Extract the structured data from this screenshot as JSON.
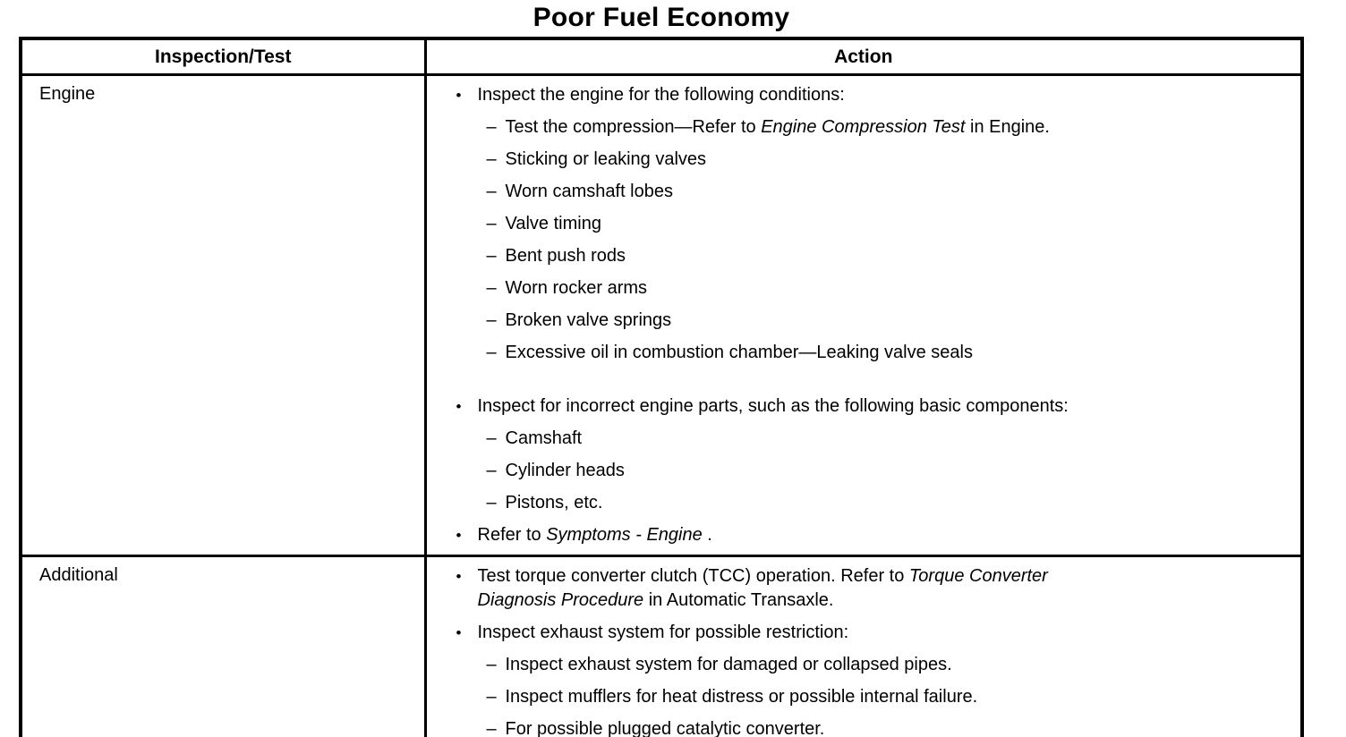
{
  "title": "Poor Fuel Economy",
  "glyphs": {
    "bullet": "•",
    "dash": "–"
  },
  "table": {
    "headers": [
      "Inspection/Test",
      "Action"
    ],
    "rows": [
      {
        "inspection": "Engine",
        "actions": [
          {
            "text": [
              "Inspect the engine for the following conditions:"
            ],
            "subitems": [
              [
                "Test the compression—Refer to ",
                {
                  "i": "Engine Compression Test"
                },
                " in Engine."
              ],
              [
                "Sticking or leaking valves"
              ],
              [
                "Worn camshaft lobes"
              ],
              [
                "Valve timing"
              ],
              [
                "Bent push rods"
              ],
              [
                "Worn rocker arms"
              ],
              [
                "Broken valve springs"
              ],
              [
                "Excessive oil in combustion chamber—Leaking valve seals"
              ]
            ]
          },
          {
            "gap_before": true,
            "text": [
              "Inspect for incorrect engine parts, such as the following basic components:"
            ],
            "subitems": [
              [
                "Camshaft"
              ],
              [
                "Cylinder heads"
              ],
              [
                "Pistons, etc."
              ]
            ]
          },
          {
            "text": [
              "Refer to ",
              {
                "i": "Symptoms - Engine"
              },
              " ."
            ]
          }
        ]
      },
      {
        "inspection": "Additional",
        "actions": [
          {
            "text": [
              "Test torque converter clutch (TCC) operation. Refer to ",
              {
                "i": "Torque Converter"
              },
              {
                "br": true
              },
              {
                "i": "Diagnosis Procedure"
              },
              " in Automatic Transaxle."
            ]
          },
          {
            "text": [
              "Inspect exhaust system for possible restriction:"
            ],
            "subitems": [
              [
                "Inspect exhaust system for damaged or collapsed pipes."
              ],
              [
                "Inspect mufflers for heat distress or possible internal failure."
              ],
              [
                "For possible plugged catalytic converter."
              ]
            ]
          }
        ]
      }
    ]
  }
}
